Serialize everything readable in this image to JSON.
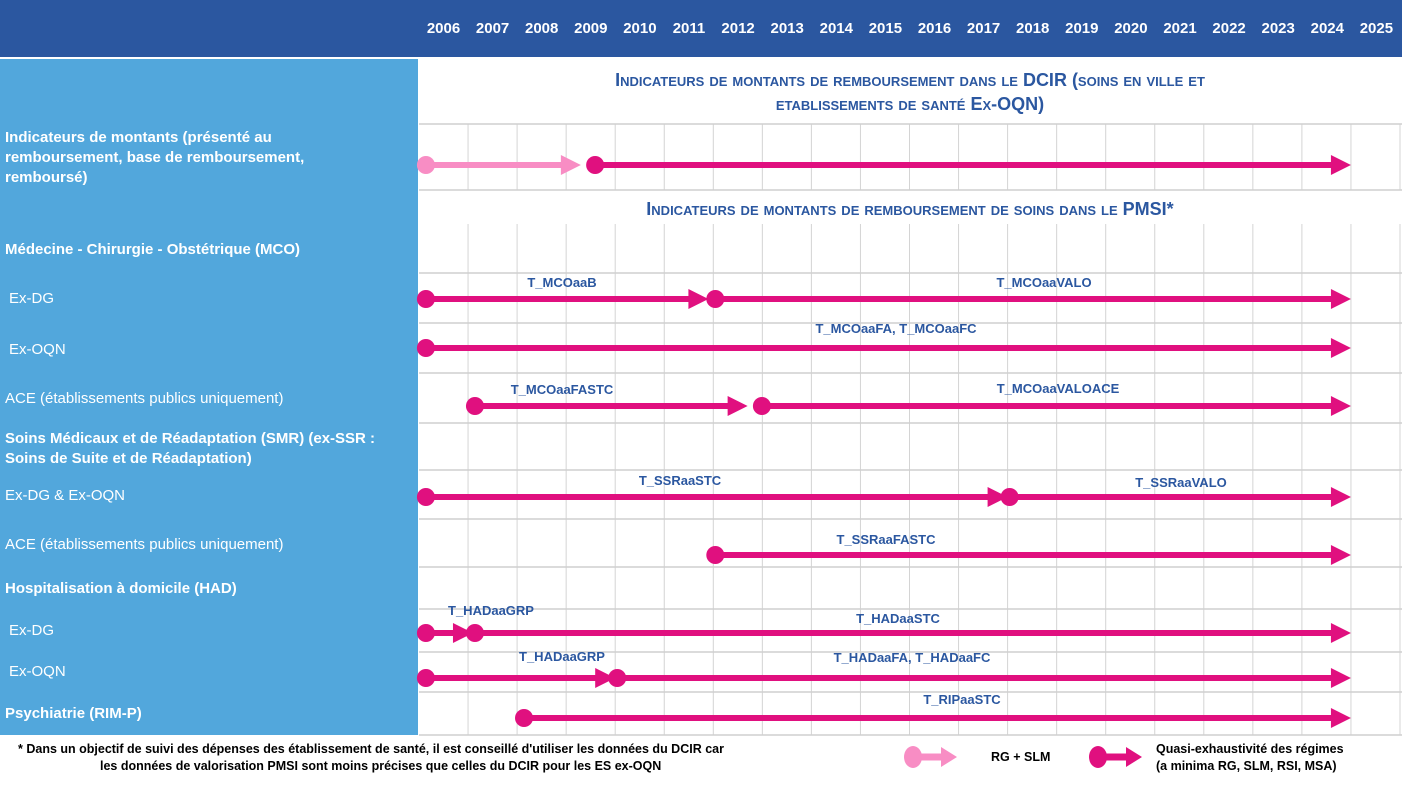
{
  "years": [
    "2006",
    "2007",
    "2008",
    "2009",
    "2010",
    "2011",
    "2012",
    "2013",
    "2014",
    "2015",
    "2016",
    "2017",
    "2018",
    "2019",
    "2020",
    "2021",
    "2022",
    "2023",
    "2024",
    "2025"
  ],
  "dcir_title_1": "Indicateurs de montants de remboursement dans le DCIR (soins en ville et",
  "dcir_title_2": "etablissements de santé Ex-OQN)",
  "pmsi_title": "Indicateurs de montants de remboursement de soins dans le PMSI*",
  "rows": {
    "montants": "Indicateurs de montants (présenté au remboursement, base de remboursement, remboursé)",
    "mco": "Médecine - Chirurgie - Obstétrique (MCO)",
    "mco_exdg": "Ex-DG",
    "mco_exoqn": "Ex-OQN",
    "mco_ace": "ACE (établissements publics uniquement)",
    "smr": "Soins Médicaux et de Réadaptation (SMR) (ex-SSR : Soins de Suite et de Réadaptation)",
    "smr_all": "Ex-DG & Ex-OQN",
    "smr_ace": "ACE (établissements publics uniquement)",
    "had": "Hospitalisation à domicile (HAD)",
    "had_exdg": "Ex-DG",
    "had_exoqn": "Ex-OQN",
    "psy": "Psychiatrie (RIM-P)"
  },
  "codes": [
    "T_MCOaaB",
    "T_MCOaaVALO",
    "T_MCOaaFA,  T_MCOaaFC",
    "T_MCOaaFASTC",
    "T_MCOaaVALOACE",
    "T_SSRaaSTC",
    "T_SSRaaVALO",
    "T_SSRaaFASTC",
    "T_HADaaGRP",
    "T_HADaaSTC",
    "T_HADaaGRP",
    "T_HADaaFA, T_HADaaFC",
    "T_RIPaaSTC"
  ],
  "segments": [
    {
      "row": "montants",
      "from": 2006.1,
      "to": 2009.3,
      "type": "light"
    },
    {
      "row": "montants",
      "from": 2009.55,
      "to": 2025,
      "type": "dark"
    },
    {
      "row": "mco_exdg",
      "from": 2006.1,
      "to": 2011.9,
      "type": "dark"
    },
    {
      "row": "mco_exdg",
      "from": 2012.0,
      "to": 2025,
      "type": "dark"
    },
    {
      "row": "mco_exoqn",
      "from": 2006.1,
      "to": 2025,
      "type": "dark"
    },
    {
      "row": "mco_ace",
      "from": 2007.1,
      "to": 2012.7,
      "type": "dark"
    },
    {
      "row": "mco_ace",
      "from": 2012.95,
      "to": 2025,
      "type": "dark"
    },
    {
      "row": "smr_all",
      "from": 2006.1,
      "to": 2018.0,
      "type": "dark"
    },
    {
      "row": "smr_all",
      "from": 2018.0,
      "to": 2025,
      "type": "dark"
    },
    {
      "row": "smr_ace",
      "from": 2012.0,
      "to": 2025,
      "type": "dark"
    },
    {
      "row": "had_exdg",
      "from": 2006.1,
      "to": 2007.1,
      "type": "dark"
    },
    {
      "row": "had_exdg",
      "from": 2007.1,
      "to": 2025,
      "type": "dark"
    },
    {
      "row": "had_exoqn",
      "from": 2006.1,
      "to": 2010.0,
      "type": "dark"
    },
    {
      "row": "had_exoqn",
      "from": 2010.0,
      "to": 2025,
      "type": "dark"
    },
    {
      "row": "psy",
      "from": 2008.1,
      "to": 2025,
      "type": "dark"
    }
  ],
  "colors": {
    "light": "#F88DC4",
    "dark": "#E0107F",
    "header": "#2B57A0",
    "left": "#52A7DC"
  },
  "footnote_1": "* Dans un objectif de suivi des dépenses des établissement de santé, il est conseillé d'utiliser les données du DCIR car",
  "footnote_2": "les données de valorisation PMSI sont moins précises que celles du DCIR pour les ES ex-OQN",
  "legend": {
    "light": "RG + SLM",
    "dark_1": "Quasi-exhaustivité des régimes",
    "dark_2": "(a minima RG, SLM, RSI, MSA)"
  }
}
